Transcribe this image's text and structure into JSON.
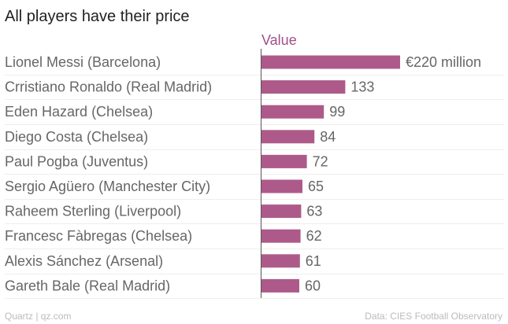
{
  "chart_data": {
    "type": "bar",
    "orientation": "horizontal",
    "title": "All players have their price",
    "series_header": "Value",
    "categories": [
      "Lionel Messi (Barcelona)",
      "Crristiano Ronaldo (Real Madrid)",
      "Eden Hazard (Chelsea)",
      "Diego Costa (Chelsea)",
      "Paul Pogba (Juventus)",
      "Sergio Agüero (Manchester City)",
      "Raheem Sterling (Liverpool)",
      "Francesc Fàbregas (Chelsea)",
      "Alexis Sánchez (Arsenal)",
      "Gareth Bale (Real Madrid)"
    ],
    "values": [
      220,
      133,
      99,
      84,
      72,
      65,
      63,
      62,
      61,
      60
    ],
    "value_labels": [
      "€220 million",
      "133",
      "99",
      "84",
      "72",
      "65",
      "63",
      "62",
      "61",
      "60"
    ],
    "xlim": [
      0,
      220
    ],
    "grid": "horizontal",
    "colors": {
      "bar": "#ad5a8a",
      "header": "#a0508a",
      "text": "#666666",
      "title": "#222222",
      "axis": "#555555",
      "grid": "#eeeeee",
      "footer": "#bbbbbb"
    }
  },
  "footer": {
    "source_left": "Quartz | qz.com",
    "source_right": "Data: CIES Football Observatory"
  }
}
